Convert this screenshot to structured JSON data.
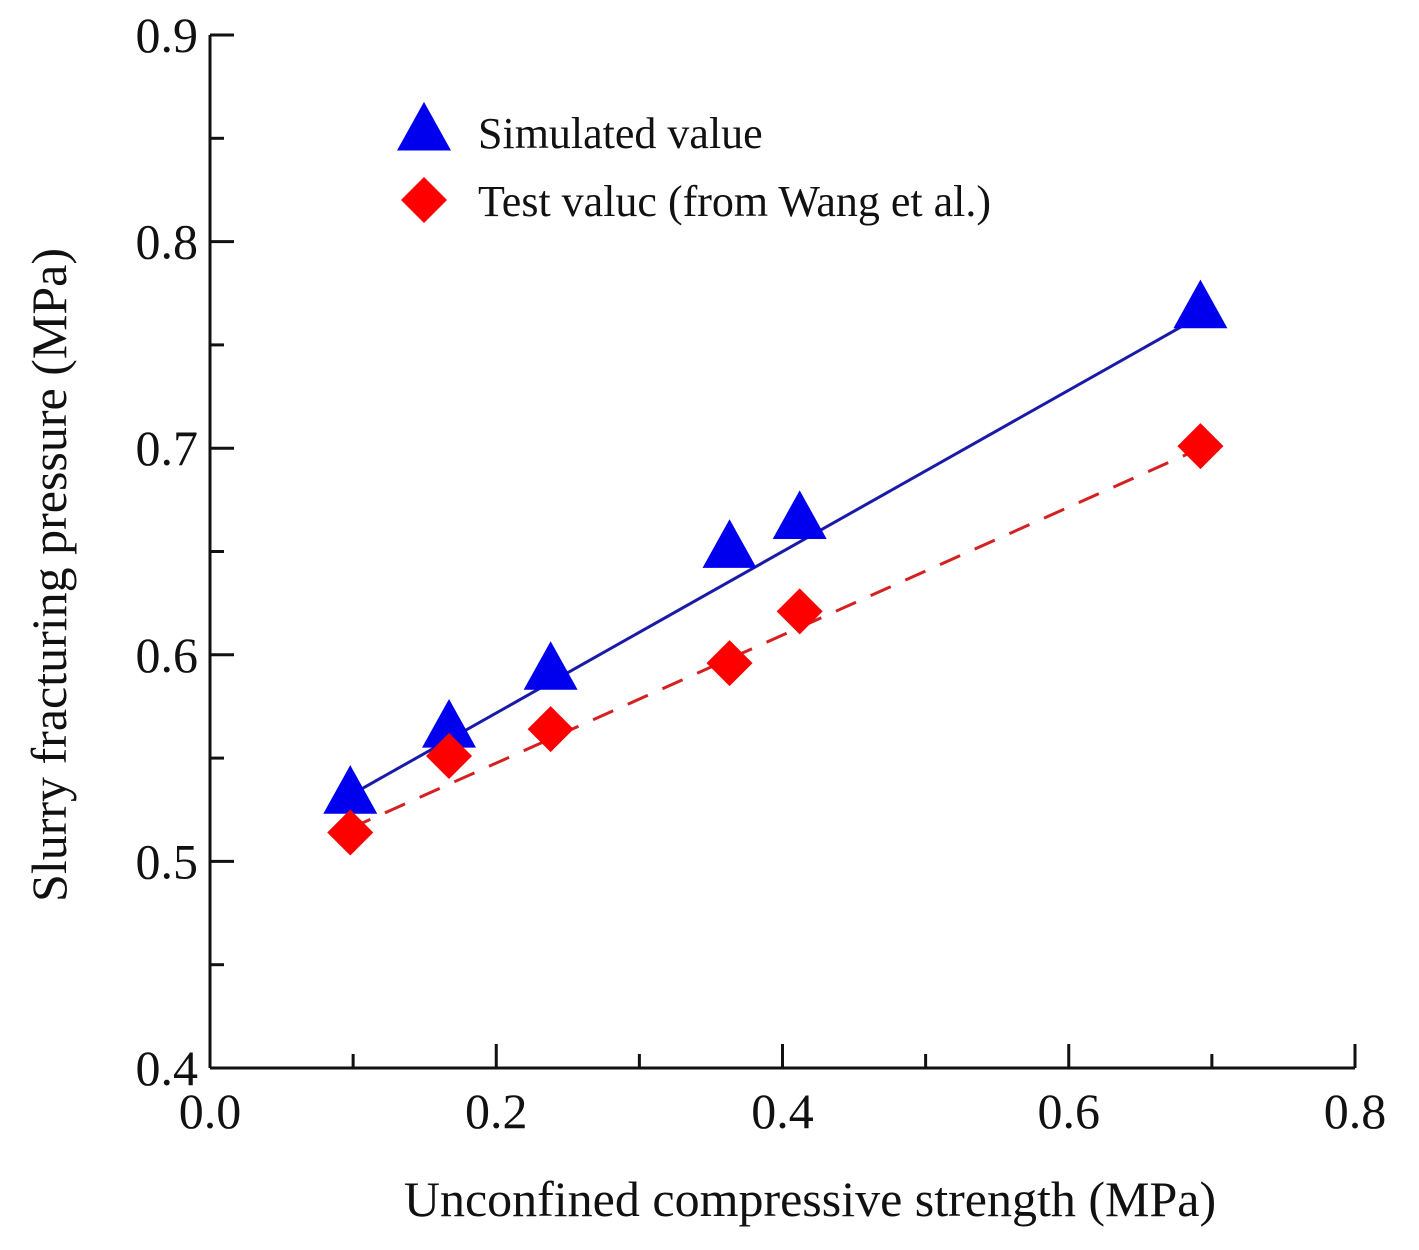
{
  "chart_data": {
    "type": "scatter",
    "title": "",
    "xlabel": "Unconfined compressive strength (MPa)",
    "ylabel": "Slurry fracturing pressure (MPa)",
    "xlim": [
      0.0,
      0.8
    ],
    "ylim": [
      0.4,
      0.9
    ],
    "x_ticks": [
      "0.0",
      "0.2",
      "0.4",
      "0.6",
      "0.8"
    ],
    "y_ticks": [
      "0.4",
      "0.5",
      "0.6",
      "0.7",
      "0.8",
      "0.9"
    ],
    "x_minor_step": 0.1,
    "y_minor_step": 0.05,
    "grid": false,
    "legend_position": "top-left",
    "series": [
      {
        "name": "Simulated value",
        "marker": "triangle",
        "color": "#0000ee",
        "line_color": "#1a1aa8",
        "line_style": "solid",
        "x": [
          0.098,
          0.167,
          0.238,
          0.363,
          0.412,
          0.692
        ],
        "y": [
          0.532,
          0.564,
          0.592,
          0.651,
          0.665,
          0.767
        ],
        "fit": [
          [
            0.098,
            0.532
          ],
          [
            0.692,
            0.764
          ]
        ]
      },
      {
        "name": "Test valuc (from Wang et al.)",
        "marker": "diamond",
        "color": "#ff0000",
        "line_color": "#d42020",
        "line_style": "dashed",
        "x": [
          0.098,
          0.167,
          0.238,
          0.363,
          0.412,
          0.692
        ],
        "y": [
          0.514,
          0.551,
          0.564,
          0.596,
          0.621,
          0.701
        ],
        "fit": [
          [
            0.098,
            0.516
          ],
          [
            0.692,
            0.7
          ]
        ]
      }
    ]
  }
}
